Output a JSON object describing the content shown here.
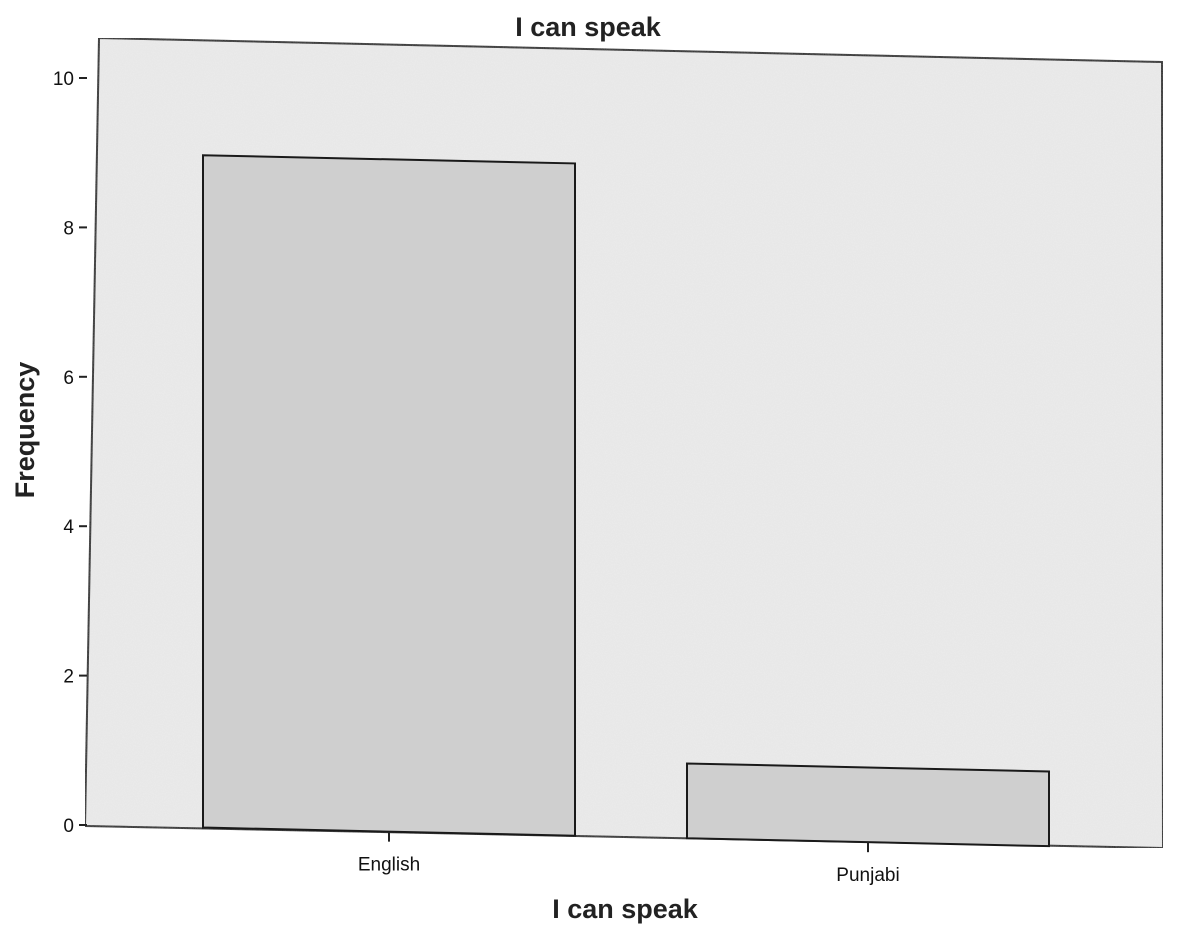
{
  "chart_data": {
    "type": "bar",
    "title": "I can speak",
    "xlabel": "I can speak",
    "ylabel": "Frequency",
    "categories": [
      "English",
      "Punjabi"
    ],
    "values": [
      9,
      1
    ],
    "ylim": [
      0,
      10
    ],
    "yticks": [
      "0",
      "2",
      "4",
      "6",
      "8",
      "10"
    ],
    "grid": false,
    "colors": {
      "bar_fill": "#cfcfcf",
      "bar_stroke": "#1a1a1a",
      "plot_background": "#ececec",
      "plot_border": "#222222"
    }
  }
}
